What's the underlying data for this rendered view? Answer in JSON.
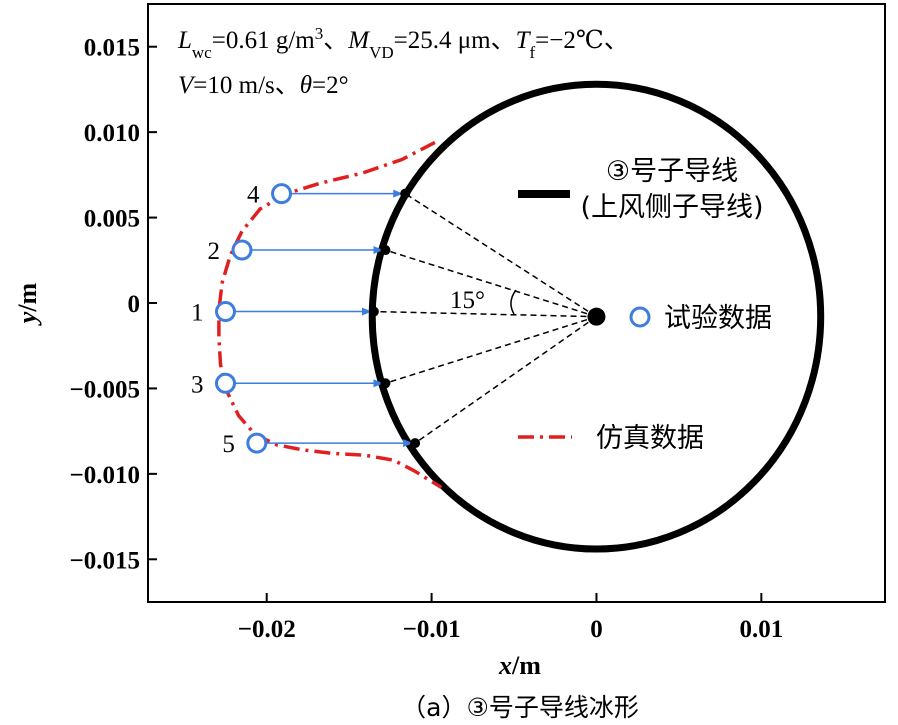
{
  "chart_data": {
    "type": "scatter",
    "title": "",
    "caption": "（a）③号子导线冰形",
    "xlabel": "x",
    "xlabel_unit": "/m",
    "ylabel": "y",
    "ylabel_unit": "/m",
    "xlim": [
      -0.0272,
      0.0175
    ],
    "ylim": [
      -0.0175,
      0.0175
    ],
    "xticks": [
      -0.02,
      -0.01,
      0,
      0.01
    ],
    "xtick_labels": [
      "−0.02",
      "−0.01",
      "0",
      "0.01"
    ],
    "yticks": [
      0.015,
      0.01,
      0.005,
      0,
      -0.005,
      -0.01,
      -0.015
    ],
    "ytick_labels": [
      "0.015",
      "0.010",
      "0.005",
      "0",
      "−0.005",
      "−0.010",
      "−0.015"
    ],
    "grid": false,
    "conditions": {
      "line1": [
        "L",
        "wc",
        "=0.61 g/m",
        "3",
        "、",
        "M",
        "VD",
        "=25.4 μm、",
        "T",
        "f",
        "=−2℃、"
      ],
      "line2": [
        "V",
        "=10 m/s、",
        "θ",
        "=2°"
      ]
    },
    "conductor": {
      "center": [
        0.0,
        -0.0008
      ],
      "radius": 0.0136,
      "color": "#000000"
    },
    "angle_label": "15°",
    "series": [
      {
        "name": "③号子导线\n(上风侧子导线)",
        "kind": "conductor",
        "color": "#000000"
      },
      {
        "name": "试验数据",
        "kind": "scatter",
        "color": "#3d7de0",
        "points": [
          {
            "label": "4",
            "x": -0.0191,
            "y": 0.0064
          },
          {
            "label": "2",
            "x": -0.0215,
            "y": 0.0031
          },
          {
            "label": "1",
            "x": -0.0225,
            "y": -0.0005
          },
          {
            "label": "3",
            "x": -0.0225,
            "y": -0.0047
          },
          {
            "label": "5",
            "x": -0.0206,
            "y": -0.0082
          }
        ]
      },
      {
        "name": "仿真数据",
        "kind": "line",
        "style": "dash-dot",
        "color": "#e02020",
        "x": [
          -0.0098,
          -0.0118,
          -0.0142,
          -0.0168,
          -0.0188,
          -0.0204,
          -0.0215,
          -0.0222,
          -0.0227,
          -0.0229,
          -0.0229,
          -0.0228,
          -0.0224,
          -0.0217,
          -0.0207,
          -0.0194,
          -0.0178,
          -0.016,
          -0.0141,
          -0.0123,
          -0.0111,
          -0.0094
        ],
        "y": [
          0.0094,
          0.0084,
          0.0076,
          0.007,
          0.0064,
          0.0055,
          0.0042,
          0.0028,
          0.0012,
          -0.0004,
          -0.002,
          -0.0036,
          -0.0052,
          -0.0066,
          -0.0077,
          -0.0083,
          -0.0086,
          -0.0088,
          -0.0089,
          -0.0092,
          -0.0098,
          -0.0108
        ]
      }
    ],
    "wall_points": [
      {
        "label": "4",
        "x": -0.0116,
        "y": 0.0064
      },
      {
        "label": "2",
        "x": -0.0128,
        "y": 0.0031
      },
      {
        "label": "1",
        "x": -0.0135,
        "y": -0.0005
      },
      {
        "label": "3",
        "x": -0.0128,
        "y": -0.0047
      },
      {
        "label": "5",
        "x": -0.011,
        "y": -0.0082
      }
    ]
  }
}
